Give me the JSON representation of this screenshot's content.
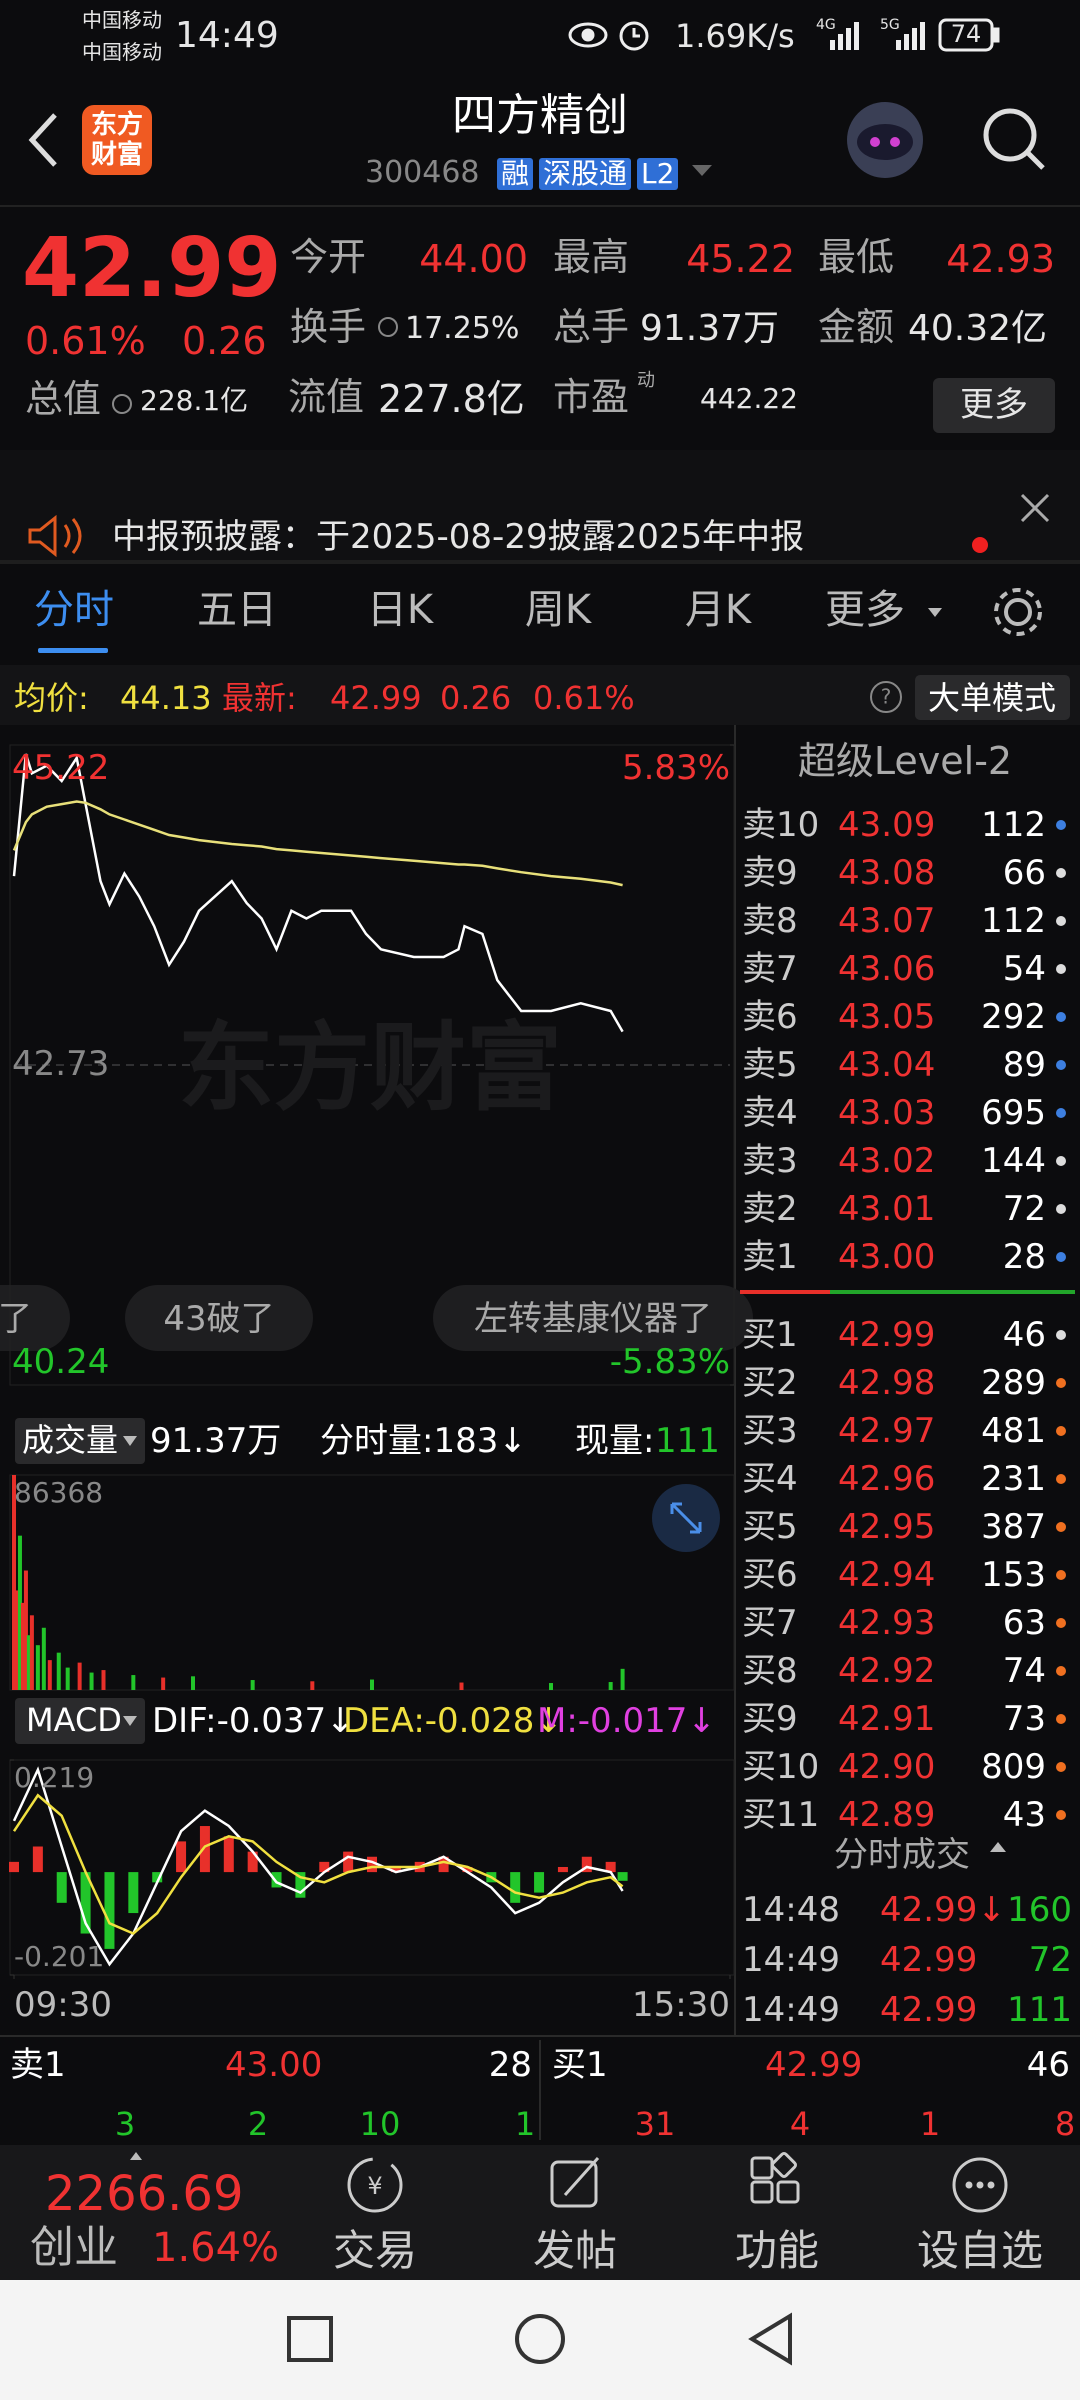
{
  "status_bar": {
    "carrier1": "中国移动",
    "carrier2": "中国移动",
    "time": "14:49",
    "speed": "1.69K/s",
    "net1": "4G",
    "net2": "5G",
    "battery": "74"
  },
  "header": {
    "logo_line1": "东方",
    "logo_line2": "财富",
    "title": "四方精创",
    "code": "300468",
    "tags": [
      "融",
      "深股通",
      "L2"
    ]
  },
  "quote": {
    "price": "42.99",
    "change_pct": "0.61%",
    "change": "0.26",
    "fields": [
      {
        "label": "今开",
        "value": "44.00"
      },
      {
        "label": "最高",
        "value": "45.22"
      },
      {
        "label": "最低",
        "value": "42.93"
      },
      {
        "label": "换手",
        "value": "17.25%"
      },
      {
        "label": "总手",
        "value": "91.37万"
      },
      {
        "label": "金额",
        "value": "40.32亿"
      },
      {
        "label": "总值",
        "value": "228.1亿"
      },
      {
        "label": "流值",
        "value": "227.8亿"
      },
      {
        "label": "市盈",
        "value": "442.22"
      }
    ],
    "pe_mark": "动",
    "more": "更多"
  },
  "notice": {
    "text": "中报预披露：于2025-08-29披露2025年中报"
  },
  "tabs": [
    "分时",
    "五日",
    "日K",
    "周K",
    "月K",
    "更多"
  ],
  "info_bar": {
    "avg_label": "均价:",
    "avg": "44.13",
    "last_label": "最新:",
    "last": "42.99",
    "change": "0.26",
    "change_pct": "0.61%",
    "mode": "大单模式"
  },
  "bubbles": [
    "了",
    "43破了",
    "左转基康仪器了"
  ],
  "chart_data": [
    {
      "type": "line",
      "watermark": "东方财富",
      "x": [
        0,
        4,
        6,
        11,
        16,
        21,
        24,
        29,
        32,
        37,
        42,
        47,
        52,
        57,
        62,
        73,
        78,
        83,
        88,
        93,
        98,
        103,
        113,
        118,
        123,
        134,
        144,
        149,
        151,
        157,
        162,
        170,
        180,
        190,
        200,
        204
      ],
      "series": [
        {
          "color": "#ffffff",
          "values": [
            44.2,
            45.15,
            45.0,
            45.06,
            44.94,
            45.12,
            44.76,
            44.16,
            43.98,
            44.22,
            44.04,
            43.81,
            43.51,
            43.69,
            43.93,
            44.16,
            43.99,
            43.87,
            43.63,
            43.93,
            43.87,
            43.93,
            43.93,
            43.75,
            43.63,
            43.57,
            43.57,
            43.63,
            43.81,
            43.75,
            43.39,
            43.15,
            43.15,
            43.21,
            43.15,
            42.99
          ]
        },
        {
          "color": "#e8e07a",
          "values": [
            44.4,
            44.62,
            44.68,
            44.74,
            44.76,
            44.78,
            44.77,
            44.72,
            44.68,
            44.64,
            44.6,
            44.56,
            44.52,
            44.5,
            44.48,
            44.45,
            44.44,
            44.43,
            44.41,
            44.4,
            44.39,
            44.38,
            44.36,
            44.35,
            44.34,
            44.32,
            44.3,
            44.29,
            44.29,
            44.28,
            44.26,
            44.23,
            44.2,
            44.18,
            44.15,
            44.13
          ]
        }
      ],
      "xlim": [
        0,
        240
      ],
      "ylim": [
        40.24,
        45.22
      ],
      "yticks": [
        45.22,
        42.73,
        40.24
      ],
      "y2lim": [
        -5.83,
        5.83
      ],
      "y2ticks": [
        {
          "value": 5.83,
          "label": "5.83%"
        },
        {
          "value": -5.83,
          "label": "-5.83%"
        }
      ]
    },
    {
      "type": "bar",
      "label": "成交量",
      "total": "91.37万",
      "tick_volume": "分时量:183↓",
      "now_label": "现量:",
      "now": "111",
      "x": [
        0,
        1,
        2,
        3,
        4,
        5,
        6,
        8,
        10,
        12,
        15,
        18,
        22,
        26,
        30,
        40,
        50,
        60,
        80,
        100,
        120,
        150,
        180,
        200,
        204
      ],
      "values": [
        86368,
        40000,
        62000,
        35000,
        48000,
        22000,
        30000,
        18000,
        25000,
        12000,
        15000,
        9000,
        11000,
        7000,
        8000,
        6000,
        5000,
        5500,
        4000,
        3500,
        4200,
        3000,
        2800,
        3200,
        8500
      ],
      "colors": [
        "#e8302a",
        "#e8302a",
        "#22c52a",
        "#e8302a",
        "#e8302a",
        "#22c52a",
        "#e8302a",
        "#22c52a",
        "#22c52a",
        "#e8302a",
        "#22c52a",
        "#22c52a",
        "#e8302a",
        "#22c52a",
        "#e8302a",
        "#22c52a",
        "#e8302a",
        "#22c52a",
        "#22c52a",
        "#e8302a",
        "#22c52a",
        "#e8302a",
        "#22c52a",
        "#22c52a",
        "#22c52a"
      ],
      "xlim": [
        0,
        240
      ],
      "ylim": [
        0,
        86368
      ],
      "yticks": [
        86368
      ]
    },
    {
      "type": "macd",
      "label": "MACD",
      "dif_label": "DIF:-0.037↓",
      "dea_label": "DEA:-0.028↓",
      "m_label": "M:-0.017↓",
      "x": [
        0,
        8,
        16,
        24,
        32,
        40,
        48,
        56,
        64,
        72,
        80,
        88,
        96,
        104,
        112,
        120,
        128,
        136,
        144,
        152,
        160,
        168,
        176,
        184,
        192,
        200,
        204
      ],
      "histogram": [
        0.02,
        0.05,
        -0.06,
        -0.12,
        -0.15,
        -0.08,
        -0.02,
        0.06,
        0.09,
        0.07,
        0.04,
        -0.03,
        -0.05,
        0.02,
        0.04,
        0.03,
        0.01,
        0.02,
        0.03,
        0.01,
        -0.02,
        -0.06,
        -0.04,
        0.01,
        0.03,
        0.02,
        -0.017
      ],
      "up_color": "#e8302a",
      "down_color": "#22c52a",
      "series": [
        {
          "color": "#ffffff",
          "values": [
            0.1,
            0.2,
            0.05,
            -0.1,
            -0.18,
            -0.12,
            -0.02,
            0.08,
            0.12,
            0.09,
            0.04,
            -0.02,
            -0.04,
            0.0,
            0.03,
            0.02,
            0.0,
            0.01,
            0.03,
            0.0,
            -0.03,
            -0.08,
            -0.06,
            -0.02,
            0.01,
            0.0,
            -0.037
          ]
        },
        {
          "color": "#f0e040",
          "values": [
            0.08,
            0.15,
            0.11,
            0.0,
            -0.1,
            -0.12,
            -0.08,
            -0.01,
            0.05,
            0.07,
            0.06,
            0.02,
            -0.01,
            -0.02,
            0.0,
            0.01,
            0.01,
            0.01,
            0.02,
            0.01,
            -0.01,
            -0.04,
            -0.05,
            -0.04,
            -0.02,
            -0.01,
            -0.028
          ]
        }
      ],
      "xlim": [
        0,
        240
      ],
      "xticks": [
        {
          "value": 0,
          "label": "09:30"
        },
        {
          "value": 240,
          "label": "15:30"
        }
      ],
      "ylim": [
        -0.201,
        0.219
      ],
      "yticks": [
        0.219,
        -0.201
      ]
    }
  ],
  "order_book": {
    "title": "超级Level-2",
    "asks": [
      {
        "label": "卖10",
        "price": "43.09",
        "volume": "112",
        "dot": "#3d7fe0"
      },
      {
        "label": "卖9",
        "price": "43.08",
        "volume": "66",
        "dot": "#dddddd"
      },
      {
        "label": "卖8",
        "price": "43.07",
        "volume": "112",
        "dot": "#dddddd"
      },
      {
        "label": "卖7",
        "price": "43.06",
        "volume": "54",
        "dot": "#dddddd"
      },
      {
        "label": "卖6",
        "price": "43.05",
        "volume": "292",
        "dot": "#3d7fe0"
      },
      {
        "label": "卖5",
        "price": "43.04",
        "volume": "89",
        "dot": "#3d7fe0"
      },
      {
        "label": "卖4",
        "price": "43.03",
        "volume": "695",
        "dot": "#3d7fe0"
      },
      {
        "label": "卖3",
        "price": "43.02",
        "volume": "144",
        "dot": "#dddddd"
      },
      {
        "label": "卖2",
        "price": "43.01",
        "volume": "72",
        "dot": "#dddddd"
      },
      {
        "label": "卖1",
        "price": "43.00",
        "volume": "28",
        "dot": "#3d7fe0"
      }
    ],
    "bids": [
      {
        "label": "买1",
        "price": "42.99",
        "volume": "46",
        "dot": "#dddddd"
      },
      {
        "label": "买2",
        "price": "42.98",
        "volume": "289",
        "dot": "#f07020"
      },
      {
        "label": "买3",
        "price": "42.97",
        "volume": "481",
        "dot": "#f07020"
      },
      {
        "label": "买4",
        "price": "42.96",
        "volume": "231",
        "dot": "#f07020"
      },
      {
        "label": "买5",
        "price": "42.95",
        "volume": "387",
        "dot": "#f07020"
      },
      {
        "label": "买6",
        "price": "42.94",
        "volume": "153",
        "dot": "#f07020"
      },
      {
        "label": "买7",
        "price": "42.93",
        "volume": "63",
        "dot": "#f07020"
      },
      {
        "label": "买8",
        "price": "42.92",
        "volume": "74",
        "dot": "#f07020"
      },
      {
        "label": "买9",
        "price": "42.91",
        "volume": "73",
        "dot": "#f07020"
      },
      {
        "label": "买10",
        "price": "42.90",
        "volume": "809",
        "dot": "#f07020"
      },
      {
        "label": "买11",
        "price": "42.89",
        "volume": "43",
        "dot": "#f07020"
      }
    ]
  },
  "trades": {
    "title": "分时成交",
    "rows": [
      {
        "time": "14:48",
        "price": "42.99↓",
        "volume": "160"
      },
      {
        "time": "14:49",
        "price": "42.99",
        "volume": "72"
      },
      {
        "time": "14:49",
        "price": "42.99",
        "volume": "111"
      }
    ]
  },
  "bottom_quote": {
    "ask_label": "卖1",
    "ask_price": "43.00",
    "ask_volume": "28",
    "bid_label": "买1",
    "bid_price": "42.99",
    "bid_volume": "46",
    "ask_counts": [
      "3",
      "2",
      "10",
      "1"
    ],
    "bid_counts": [
      "31",
      "4",
      "1",
      "8"
    ]
  },
  "bottom_nav": {
    "index_value": "2266.69",
    "index_name": "创业",
    "index_pct": "1.64%",
    "items": [
      "交易",
      "发帖",
      "功能",
      "设自选"
    ]
  }
}
